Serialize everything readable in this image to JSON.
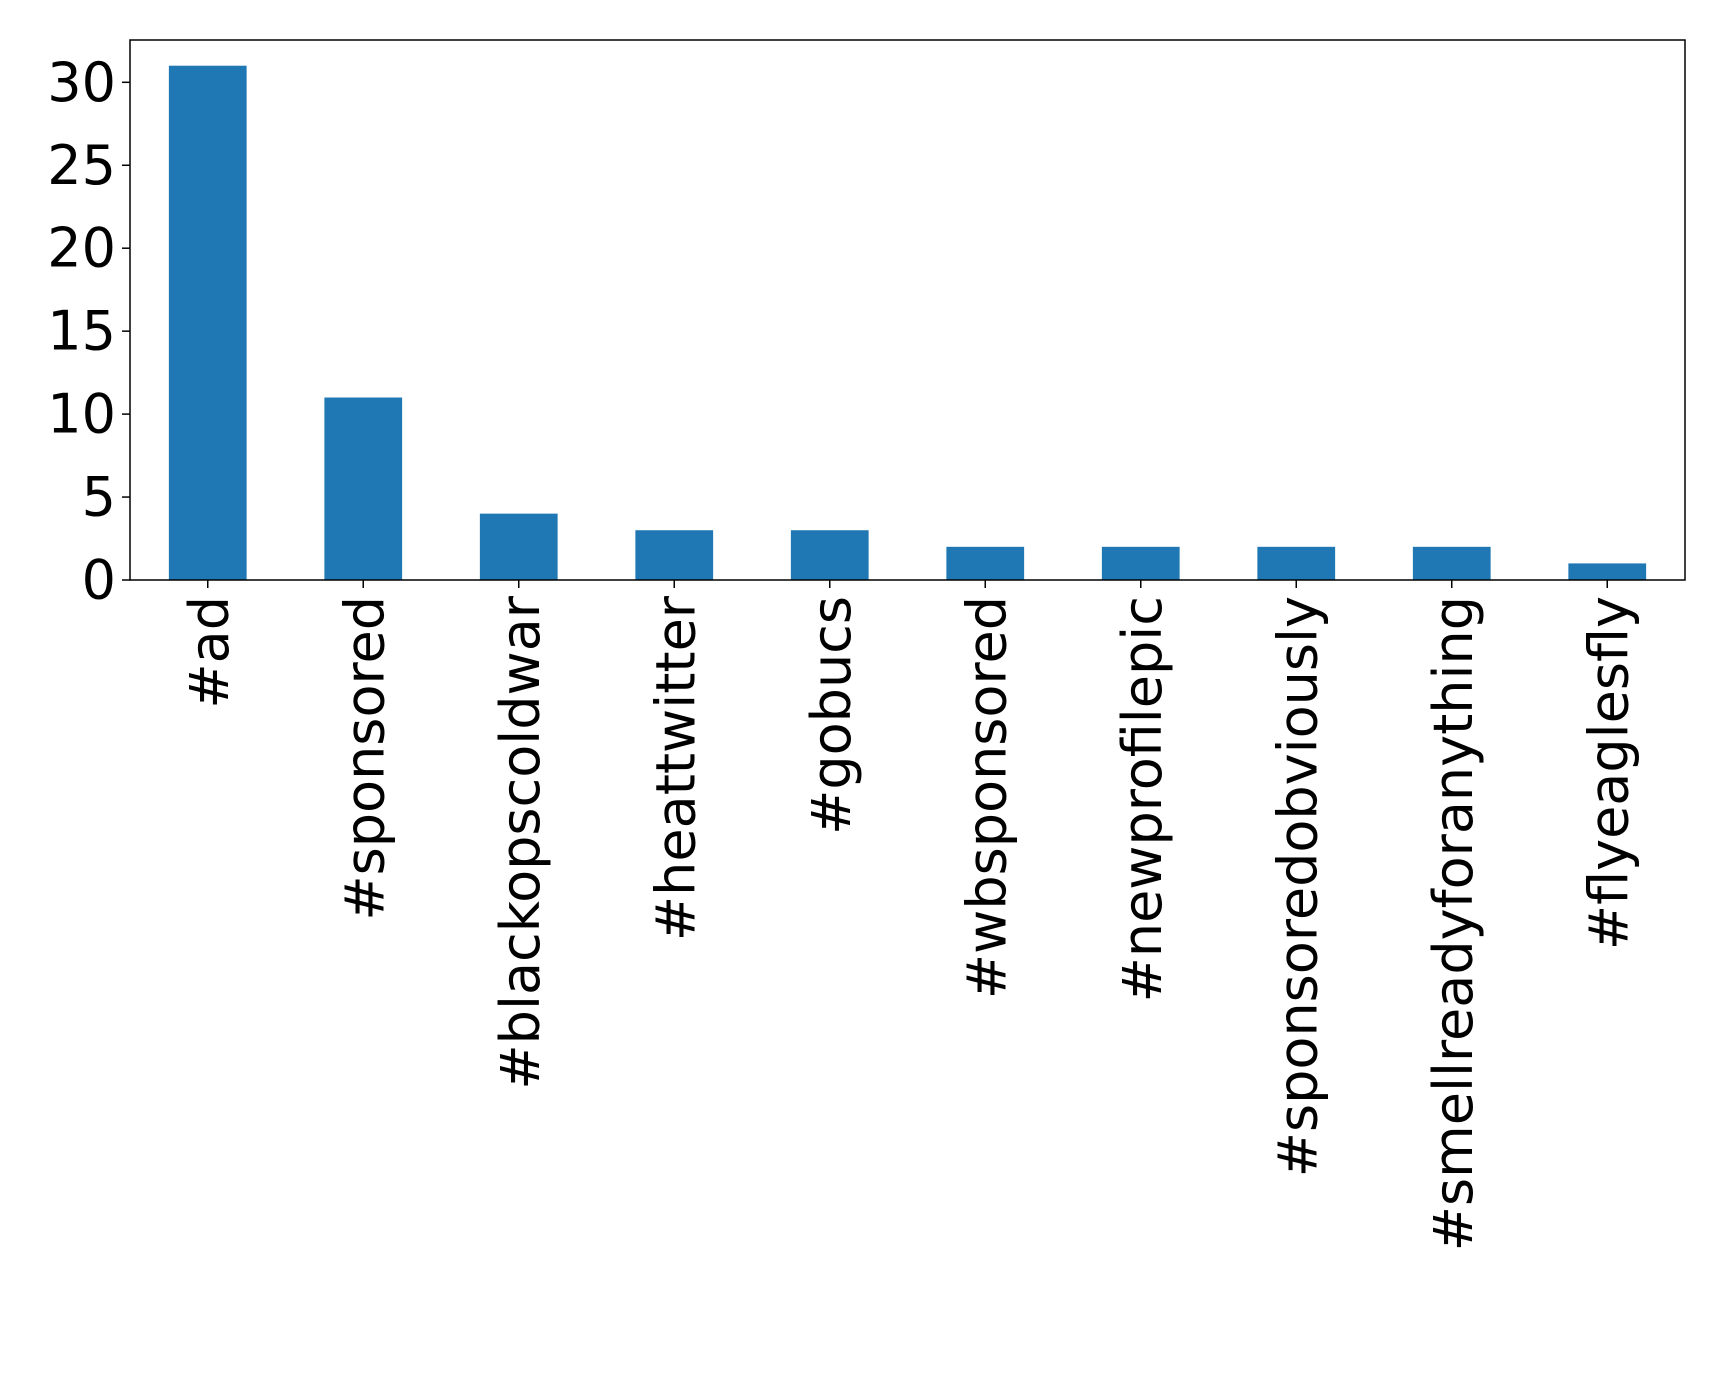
{
  "chart_data": {
    "type": "bar",
    "title": "",
    "xlabel": "",
    "ylabel": "",
    "categories": [
      "#ad",
      "#sponsored",
      "#blackopscoldwar",
      "#heattwitter",
      "#gobucs",
      "#wbsponsored",
      "#newprofilepic",
      "#sponsoredobviously",
      "#smellreadyforanything",
      "#flyeaglesfly"
    ],
    "values": [
      31,
      11,
      4,
      3,
      3,
      2,
      2,
      2,
      2,
      1
    ],
    "ylim": [
      0,
      32.55
    ],
    "yticks": [
      "0",
      "5",
      "10",
      "15",
      "20",
      "25",
      "30"
    ],
    "bar_color": "#1f77b4",
    "grid": false,
    "legend": "none",
    "x_tick_rotation": "vertical"
  }
}
